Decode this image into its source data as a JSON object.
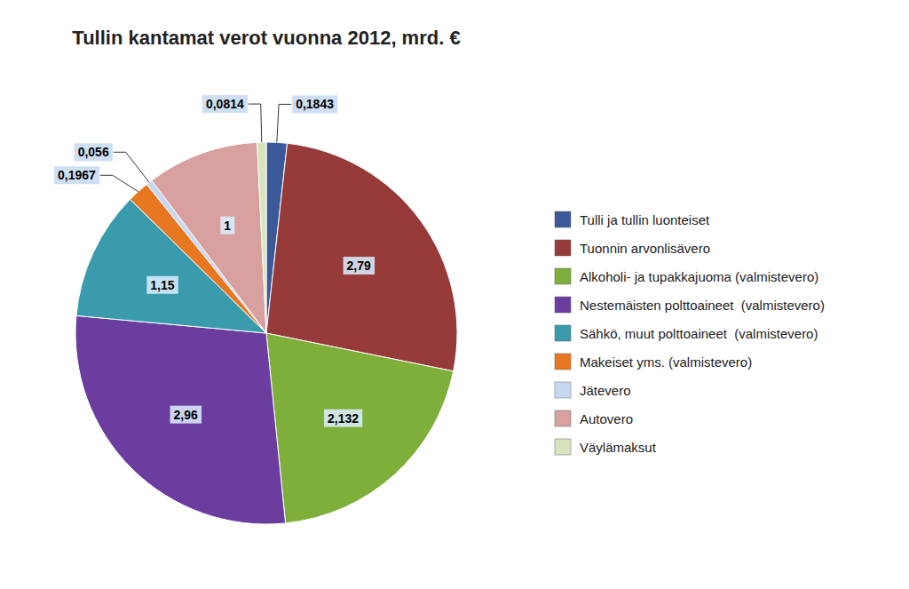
{
  "chart_data": {
    "type": "pie",
    "title": "Tullin kantamat verot vuonna 2012, mrd. €",
    "categories": [
      "Tulli ja tullin luonteiset",
      "Tuonnin arvonlisävero",
      "Alkoholi- ja tupakkajuoma (valmistevero)",
      "Nestemäisten polttoaineet  (valmistevero)",
      "Sähkö, muut polttoaineet  (valmistevero)",
      "Makeiset yms. (valmistevero)",
      "Jätevero",
      "Autovero",
      "Väylämaksut"
    ],
    "values": [
      0.1843,
      2.79,
      2.132,
      2.96,
      1.15,
      0.1967,
      0.056,
      1.0,
      0.0814
    ],
    "value_labels": [
      "0,1843",
      "2,79",
      "2,132",
      "2,96",
      "1,15",
      "0,1967",
      "0,056",
      "1",
      "0,0814"
    ],
    "colors": [
      "#3B5998",
      "#963A3A",
      "#7DAF3A",
      "#6B3D9F",
      "#3A9BAD",
      "#E87722",
      "#C6D9F1",
      "#D9A0A0",
      "#D8E4BC"
    ],
    "data_labels": true,
    "legend": "right"
  }
}
